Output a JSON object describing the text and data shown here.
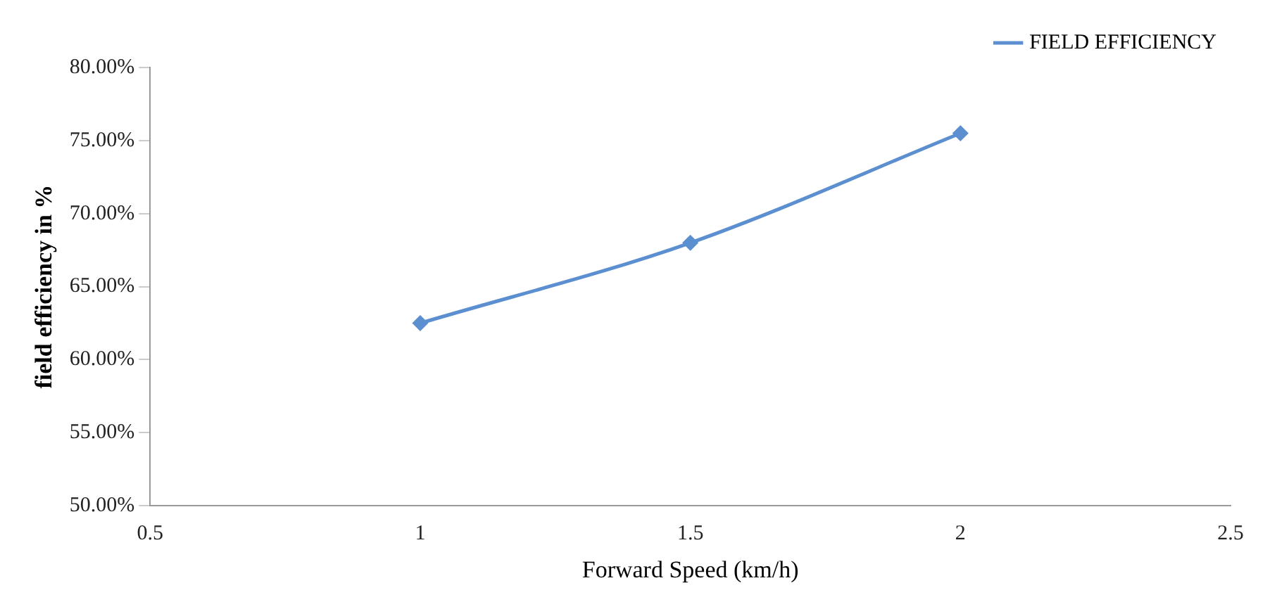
{
  "chart_data": {
    "type": "line",
    "xlabel": "Forward Speed (km/h)",
    "ylabel": "field efficiency in %",
    "x": [
      1,
      1.5,
      2
    ],
    "series": [
      {
        "name": "FIELD EFFICIENCY",
        "color": "#5b8fd0",
        "values": [
          62.5,
          68,
          75.5
        ]
      }
    ],
    "xlim": [
      0.5,
      2.5
    ],
    "xticks": [
      0.5,
      1,
      1.5,
      2,
      2.5
    ],
    "ylim": [
      50,
      80
    ],
    "yticks": [
      {
        "value": 50,
        "label": "50.00%"
      },
      {
        "value": 55,
        "label": "55.00%"
      },
      {
        "value": 60,
        "label": "60.00%"
      },
      {
        "value": 65,
        "label": "65.00%"
      },
      {
        "value": 70,
        "label": "70.00%"
      },
      {
        "value": 75,
        "label": "75.00%"
      },
      {
        "value": 80,
        "label": "80.00%"
      }
    ],
    "grid": false,
    "legend": "top right",
    "marker": "diamond",
    "line_style": "solid"
  }
}
